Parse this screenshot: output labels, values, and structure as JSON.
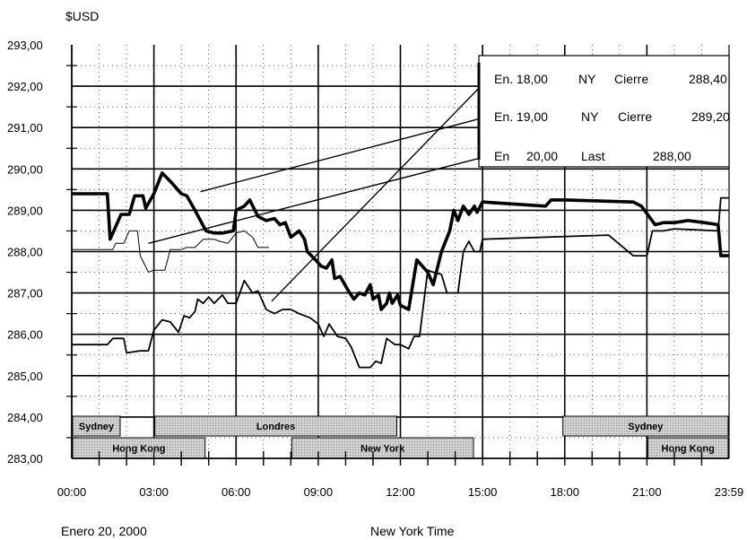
{
  "chart_data": {
    "type": "line",
    "ylabel": "$USD",
    "xlabel": "New York Time",
    "date_label": "Enero 20, 2000",
    "ylim": [
      283,
      293
    ],
    "xlim": [
      0,
      24
    ],
    "y_ticks": [
      "283,00",
      "284,00",
      "285,00",
      "286,00",
      "287,00",
      "288,00",
      "289,00",
      "290,00",
      "291,00",
      "292,00",
      "293,00"
    ],
    "x_ticks": [
      {
        "x": 0,
        "label": "00:00"
      },
      {
        "x": 3,
        "label": "03:00"
      },
      {
        "x": 6,
        "label": "06:00"
      },
      {
        "x": 9,
        "label": "09:00"
      },
      {
        "x": 12,
        "label": "12:00"
      },
      {
        "x": 15,
        "label": "15:00"
      },
      {
        "x": 18,
        "label": "18:00"
      },
      {
        "x": 21,
        "label": "21:00"
      },
      {
        "x": 24,
        "label": "23:59"
      }
    ],
    "grid": true,
    "series": [
      {
        "name": "",
        "style": "thick",
        "points": [
          [
            0,
            289.4
          ],
          [
            1.3,
            289.4
          ],
          [
            1.4,
            288.3
          ],
          [
            1.8,
            288.9
          ],
          [
            2.1,
            288.9
          ],
          [
            2.3,
            289.35
          ],
          [
            2.6,
            289.35
          ],
          [
            2.7,
            289.05
          ],
          [
            3.0,
            289.4
          ],
          [
            3.3,
            289.9
          ],
          [
            3.6,
            289.7
          ],
          [
            4.0,
            289.4
          ],
          [
            4.2,
            289.35
          ],
          [
            4.5,
            289.0
          ],
          [
            4.9,
            288.5
          ],
          [
            5.2,
            288.45
          ],
          [
            5.5,
            288.45
          ],
          [
            5.9,
            288.5
          ],
          [
            6.0,
            289.0
          ],
          [
            6.3,
            289.1
          ],
          [
            6.5,
            289.25
          ],
          [
            6.8,
            288.85
          ],
          [
            7.1,
            288.75
          ],
          [
            7.4,
            288.8
          ],
          [
            7.6,
            288.65
          ],
          [
            7.8,
            288.7
          ],
          [
            8.0,
            288.35
          ],
          [
            8.3,
            288.5
          ],
          [
            8.5,
            288.3
          ],
          [
            8.6,
            288.0
          ],
          [
            8.9,
            287.8
          ],
          [
            9.1,
            287.65
          ],
          [
            9.3,
            287.6
          ],
          [
            9.5,
            287.8
          ],
          [
            9.6,
            287.35
          ],
          [
            9.8,
            287.4
          ],
          [
            10.1,
            287.05
          ],
          [
            10.3,
            286.85
          ],
          [
            10.5,
            287.0
          ],
          [
            10.7,
            286.95
          ],
          [
            10.9,
            287.2
          ],
          [
            11.0,
            286.85
          ],
          [
            11.2,
            286.95
          ],
          [
            11.3,
            286.6
          ],
          [
            11.5,
            286.75
          ],
          [
            11.6,
            287.0
          ],
          [
            11.7,
            286.75
          ],
          [
            11.9,
            286.95
          ],
          [
            12.0,
            286.7
          ],
          [
            12.3,
            286.6
          ],
          [
            12.6,
            287.8
          ],
          [
            13.0,
            287.5
          ],
          [
            13.2,
            287.2
          ],
          [
            13.5,
            288.0
          ],
          [
            13.8,
            288.5
          ],
          [
            13.95,
            289.0
          ],
          [
            14.1,
            288.75
          ],
          [
            14.3,
            289.1
          ],
          [
            14.5,
            288.9
          ],
          [
            14.7,
            289.1
          ],
          [
            14.8,
            288.95
          ],
          [
            15.0,
            289.2
          ],
          [
            17.3,
            289.1
          ],
          [
            17.5,
            289.25
          ],
          [
            18.0,
            289.25
          ],
          [
            20.5,
            289.2
          ],
          [
            20.8,
            289.1
          ],
          [
            21.3,
            288.65
          ],
          [
            21.6,
            288.7
          ],
          [
            22.0,
            288.7
          ],
          [
            22.5,
            288.75
          ],
          [
            23.1,
            288.7
          ],
          [
            23.6,
            288.65
          ],
          [
            23.7,
            287.9
          ],
          [
            24.0,
            287.9
          ]
        ]
      },
      {
        "name": "",
        "style": "medium",
        "points": [
          [
            0,
            285.75
          ],
          [
            1.3,
            285.75
          ],
          [
            1.5,
            285.9
          ],
          [
            1.9,
            285.9
          ],
          [
            2.0,
            285.55
          ],
          [
            2.5,
            285.6
          ],
          [
            2.8,
            285.6
          ],
          [
            3.0,
            286.1
          ],
          [
            3.3,
            286.35
          ],
          [
            3.6,
            286.3
          ],
          [
            3.9,
            286.05
          ],
          [
            4.1,
            286.45
          ],
          [
            4.3,
            286.4
          ],
          [
            4.5,
            286.55
          ],
          [
            4.6,
            286.85
          ],
          [
            4.8,
            286.75
          ],
          [
            5.0,
            286.9
          ],
          [
            5.2,
            286.75
          ],
          [
            5.5,
            286.95
          ],
          [
            5.7,
            286.75
          ],
          [
            6.0,
            286.75
          ],
          [
            6.3,
            287.3
          ],
          [
            6.6,
            287.0
          ],
          [
            6.8,
            287.05
          ],
          [
            7.1,
            286.6
          ],
          [
            7.4,
            286.5
          ],
          [
            7.7,
            286.6
          ],
          [
            8.0,
            286.6
          ],
          [
            8.3,
            286.5
          ],
          [
            8.7,
            286.4
          ],
          [
            9.0,
            286.25
          ],
          [
            9.2,
            285.95
          ],
          [
            9.4,
            286.25
          ],
          [
            9.7,
            285.95
          ],
          [
            10.0,
            285.9
          ],
          [
            10.2,
            285.7
          ],
          [
            10.5,
            285.2
          ],
          [
            10.9,
            285.2
          ],
          [
            11.1,
            285.35
          ],
          [
            11.3,
            285.3
          ],
          [
            11.5,
            285.9
          ],
          [
            11.8,
            285.75
          ],
          [
            12.0,
            285.75
          ],
          [
            12.3,
            285.65
          ],
          [
            12.5,
            285.95
          ],
          [
            12.7,
            285.95
          ],
          [
            13.0,
            287.55
          ],
          [
            13.2,
            287.5
          ],
          [
            13.5,
            287.45
          ],
          [
            13.7,
            287.0
          ],
          [
            14.1,
            287.0
          ],
          [
            14.3,
            288.0
          ],
          [
            14.5,
            288.25
          ],
          [
            14.7,
            288.0
          ],
          [
            14.9,
            288.0
          ],
          [
            15.0,
            288.3
          ],
          [
            19.6,
            288.4
          ],
          [
            20.5,
            287.9
          ],
          [
            21.0,
            287.9
          ],
          [
            21.2,
            288.5
          ],
          [
            21.6,
            288.5
          ],
          [
            22.0,
            288.55
          ],
          [
            23.6,
            288.5
          ],
          [
            23.7,
            289.3
          ],
          [
            24.0,
            289.3
          ]
        ]
      },
      {
        "name": "",
        "style": "thin",
        "points": [
          [
            0,
            288.05
          ],
          [
            1.3,
            288.05
          ],
          [
            1.5,
            288.05
          ],
          [
            1.6,
            288.2
          ],
          [
            1.9,
            288.2
          ],
          [
            2.1,
            288.5
          ],
          [
            2.4,
            288.5
          ],
          [
            2.5,
            287.9
          ],
          [
            2.8,
            287.5
          ],
          [
            3.0,
            287.55
          ],
          [
            3.4,
            287.55
          ],
          [
            3.6,
            288.05
          ],
          [
            4.0,
            288.05
          ],
          [
            4.2,
            288.1
          ],
          [
            4.5,
            288.1
          ],
          [
            4.8,
            288.3
          ],
          [
            5.2,
            288.3
          ],
          [
            5.4,
            288.25
          ],
          [
            5.7,
            288.2
          ],
          [
            6.0,
            288.45
          ],
          [
            6.3,
            288.5
          ],
          [
            6.6,
            288.35
          ],
          [
            6.8,
            288.1
          ],
          [
            7.2,
            288.1
          ]
        ]
      }
    ],
    "legend": [
      {
        "label": "En. 18,00",
        "market": "NY",
        "status": "Cierre",
        "value": "288,40",
        "line_from": [
          7.3,
          286.8
        ]
      },
      {
        "label": "En. 19,00",
        "market": "NY",
        "status": "Cierre",
        "value": "289,20",
        "line_from": [
          4.7,
          289.45
        ]
      },
      {
        "label": "En",
        "market": "20,00",
        "status": "Last",
        "value": "288,00",
        "line_from": [
          2.8,
          288.2
        ]
      }
    ],
    "sessions": [
      {
        "name": "Sydney",
        "row": 0,
        "start": 0,
        "end": 1.8
      },
      {
        "name": "Londres",
        "row": 0,
        "start": 3.0,
        "end": 11.9
      },
      {
        "name": "Sydney",
        "row": 0,
        "start": 17.9,
        "end": 24.0
      },
      {
        "name": "Hong Kong",
        "row": 1,
        "start": 0,
        "end": 4.9
      },
      {
        "name": "New York",
        "row": 1,
        "start": 8.0,
        "end": 14.7
      },
      {
        "name": "Hong Kong",
        "row": 1,
        "start": 21.0,
        "end": 24.0
      }
    ]
  },
  "colors": {
    "line": "#000000",
    "session_fill": "#d0d0d0",
    "background": "#ffffff"
  }
}
